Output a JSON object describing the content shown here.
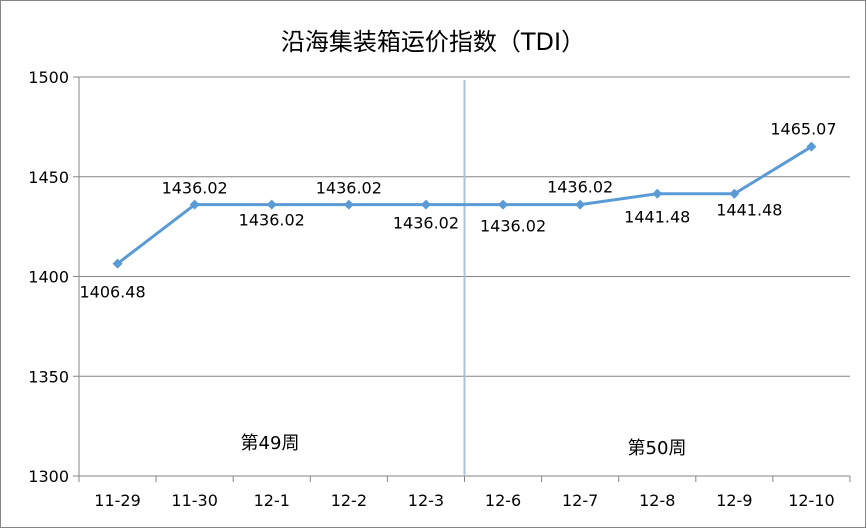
{
  "chart_data": {
    "type": "line",
    "title": "沿海集装箱运价指数（TDI）",
    "categories": [
      "11-29",
      "11-30",
      "12-1",
      "12-2",
      "12-3",
      "12-6",
      "12-7",
      "12-8",
      "12-9",
      "12-10"
    ],
    "series": [
      {
        "values": [
          1406.48,
          1436.02,
          1436.02,
          1436.02,
          1436.02,
          1436.02,
          1436.02,
          1441.48,
          1441.48,
          1465.07
        ],
        "data_labels": [
          "1406.48",
          "1436.02",
          "1436.02",
          "1436.02",
          "1436.02",
          "1436.02",
          "1436.02",
          "1441.48",
          "1441.48",
          "1465.07"
        ],
        "color": "#5b9bd5"
      }
    ],
    "ylim": [
      1300,
      1500
    ],
    "yticks": [
      "1300",
      "1350",
      "1400",
      "1450",
      "1500"
    ],
    "grid": true,
    "legend": "none",
    "annotations": {
      "week_left": "第49周",
      "week_right": "第50周"
    },
    "divider_color": "#a9c4d3"
  }
}
